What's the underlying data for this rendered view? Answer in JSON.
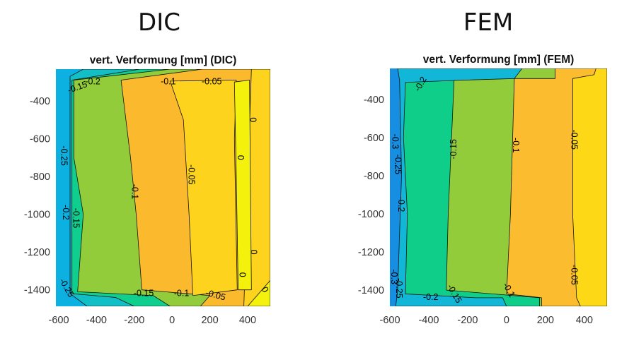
{
  "headings": {
    "left": "DIC",
    "right": "FEM"
  },
  "chart_data": [
    {
      "type": "contour",
      "title": "vert. Verformung [mm] (DIC)",
      "xlim": [
        -615,
        520
      ],
      "ylim": [
        -1487,
        -232
      ],
      "xticks": [
        -600,
        -400,
        -200,
        0,
        200,
        400
      ],
      "yticks": [
        -400,
        -600,
        -800,
        -1000,
        -1200,
        -1400
      ],
      "grid": false,
      "regions": [
        {
          "color": "#0cb1e2",
          "points": [
            [
              -615,
              -232
            ],
            [
              520,
              -232
            ],
            [
              520,
              -1487
            ],
            [
              -615,
              -1487
            ]
          ]
        },
        {
          "color": "#13bfc6",
          "points": [
            [
              -540,
              -270
            ],
            [
              -470,
              -232
            ],
            [
              520,
              -232
            ],
            [
              520,
              -1487
            ],
            [
              -450,
              -1487
            ],
            [
              -540,
              -1420
            ]
          ]
        },
        {
          "color": "#10cf8e",
          "points": [
            [
              -530,
              -290
            ],
            [
              -170,
              -232
            ],
            [
              520,
              -232
            ],
            [
              520,
              -1487
            ],
            [
              -200,
              -1487
            ],
            [
              -300,
              -1440
            ],
            [
              -530,
              -1420
            ]
          ]
        },
        {
          "color": "#93cc3a",
          "points": [
            [
              -520,
              -290
            ],
            [
              -10,
              -232
            ],
            [
              520,
              -232
            ],
            [
              520,
              -1487
            ],
            [
              -10,
              -1487
            ],
            [
              -100,
              -1430
            ],
            [
              -500,
              -1410
            ],
            [
              -470,
              -1000
            ],
            [
              -520,
              -700
            ]
          ]
        },
        {
          "color": "#fbba2e",
          "points": [
            [
              -270,
              -290
            ],
            [
              160,
              -232
            ],
            [
              520,
              -232
            ],
            [
              520,
              -1487
            ],
            [
              150,
              -1487
            ],
            [
              200,
              -1430
            ],
            [
              -160,
              -1400
            ],
            [
              -190,
              -1000
            ],
            [
              -220,
              -700
            ]
          ]
        },
        {
          "color": "#fdd31e",
          "points": [
            [
              -10,
              -295
            ],
            [
              340,
              -290
            ],
            [
              330,
              -600
            ],
            [
              345,
              -1400
            ],
            [
              110,
              -1430
            ],
            [
              90,
              -1000
            ],
            [
              60,
              -500
            ]
          ]
        },
        {
          "color": "#fdd31e",
          "points": [
            [
              420,
              -232
            ],
            [
              520,
              -232
            ],
            [
              520,
              -1487
            ],
            [
              380,
              -1487
            ]
          ]
        },
        {
          "color": "#f4f20c",
          "points": [
            [
              330,
              -300
            ],
            [
              410,
              -290
            ],
            [
              420,
              -1400
            ],
            [
              350,
              -1400
            ],
            [
              340,
              -800
            ]
          ]
        },
        {
          "color": "#f4f20c",
          "points": [
            [
              400,
              -1487
            ],
            [
              520,
              -1487
            ],
            [
              520,
              -1350
            ]
          ]
        }
      ],
      "contour_labels": [
        {
          "text": "-0.15",
          "x": -500,
          "y": -330,
          "angle": -20
        },
        {
          "text": "-0.2",
          "x": -420,
          "y": -300,
          "angle": 0
        },
        {
          "text": "-0.1",
          "x": -20,
          "y": -300,
          "angle": 0
        },
        {
          "text": "-0.05",
          "x": 210,
          "y": -300,
          "angle": 0
        },
        {
          "text": "0",
          "x": 425,
          "y": -500,
          "angle": 90
        },
        {
          "text": "0",
          "x": 360,
          "y": -700,
          "angle": 90
        },
        {
          "text": "-0.05",
          "x": 100,
          "y": -790,
          "angle": 90
        },
        {
          "text": "-0.1",
          "x": -200,
          "y": -880,
          "angle": 90
        },
        {
          "text": "-0.25",
          "x": -575,
          "y": -690,
          "angle": 90
        },
        {
          "text": "-0.2",
          "x": -565,
          "y": -990,
          "angle": 90
        },
        {
          "text": "-0.15",
          "x": -510,
          "y": -1020,
          "angle": 90
        },
        {
          "text": "0",
          "x": 430,
          "y": -1200,
          "angle": 90
        },
        {
          "text": "0",
          "x": 370,
          "y": -1320,
          "angle": 90
        },
        {
          "text": "0",
          "x": 490,
          "y": -1400,
          "angle": 60
        },
        {
          "text": "-0.25",
          "x": -560,
          "y": -1390,
          "angle": 60
        },
        {
          "text": "-0.15",
          "x": -150,
          "y": -1420,
          "angle": 0
        },
        {
          "text": "-0.1",
          "x": 50,
          "y": -1420,
          "angle": 0
        },
        {
          "text": "-0.05",
          "x": 230,
          "y": -1430,
          "angle": 15
        }
      ]
    },
    {
      "type": "contour",
      "title": "vert. Verformung [mm] (FEM)",
      "xlim": [
        -600,
        517
      ],
      "ylim": [
        -1485,
        -237
      ],
      "xticks": [
        -600,
        -400,
        -200,
        0,
        200,
        400
      ],
      "yticks": [
        -400,
        -600,
        -800,
        -1000,
        -1200,
        -1400
      ],
      "grid": false,
      "regions": [
        {
          "color": "#168fe3",
          "points": [
            [
              -600,
              -237
            ],
            [
              517,
              -237
            ],
            [
              517,
              -1485
            ],
            [
              -600,
              -1485
            ]
          ]
        },
        {
          "color": "#12b6d6",
          "points": [
            [
              -560,
              -237
            ],
            [
              517,
              -237
            ],
            [
              517,
              -1485
            ],
            [
              -570,
              -1485
            ],
            [
              -560,
              -1400
            ],
            [
              -540,
              -800
            ],
            [
              -550,
              -300
            ]
          ]
        },
        {
          "color": "#0fce8a",
          "points": [
            [
              -520,
              -310
            ],
            [
              -270,
              -300
            ],
            [
              80,
              -290
            ],
            [
              80,
              -237
            ],
            [
              517,
              -237
            ],
            [
              517,
              -1485
            ],
            [
              0,
              -1485
            ],
            [
              -20,
              -1440
            ],
            [
              -160,
              -1440
            ],
            [
              -520,
              -1420
            ],
            [
              -510,
              -1000
            ],
            [
              -530,
              -600
            ]
          ]
        },
        {
          "color": "#93cc3a",
          "points": [
            [
              -270,
              -300
            ],
            [
              40,
              -290
            ],
            [
              80,
              -237
            ],
            [
              517,
              -237
            ],
            [
              517,
              -1485
            ],
            [
              170,
              -1485
            ],
            [
              170,
              -1440
            ],
            [
              -310,
              -1400
            ],
            [
              -300,
              -1000
            ]
          ]
        },
        {
          "color": "#fbbc2f",
          "points": [
            [
              40,
              -290
            ],
            [
              250,
              -290
            ],
            [
              250,
              -237
            ],
            [
              517,
              -237
            ],
            [
              517,
              -1485
            ],
            [
              180,
              -1485
            ],
            [
              180,
              -1440
            ],
            [
              0,
              -1420
            ],
            [
              20,
              -1000
            ]
          ]
        },
        {
          "color": "#fdd816",
          "points": [
            [
              340,
              -290
            ],
            [
              450,
              -270
            ],
            [
              460,
              -237
            ],
            [
              517,
              -237
            ],
            [
              517,
              -1485
            ],
            [
              380,
              -1485
            ],
            [
              360,
              -1440
            ],
            [
              340,
              -1000
            ]
          ]
        }
      ],
      "contour_labels": [
        {
          "text": "-0.2",
          "x": -440,
          "y": -320,
          "angle": -60
        },
        {
          "text": "-0.3",
          "x": -575,
          "y": -620,
          "angle": 90
        },
        {
          "text": "-0.25",
          "x": -560,
          "y": -740,
          "angle": 90
        },
        {
          "text": "-0.2",
          "x": -545,
          "y": -950,
          "angle": 90
        },
        {
          "text": "-0.15",
          "x": -270,
          "y": -660,
          "angle": -90
        },
        {
          "text": "-0.1",
          "x": 45,
          "y": -640,
          "angle": 90
        },
        {
          "text": "-0.05",
          "x": 345,
          "y": -610,
          "angle": 90
        },
        {
          "text": "-0.05",
          "x": 345,
          "y": -1320,
          "angle": 90
        },
        {
          "text": "-0.1",
          "x": 10,
          "y": -1400,
          "angle": 60
        },
        {
          "text": "-0.15",
          "x": -270,
          "y": -1420,
          "angle": 60
        },
        {
          "text": "-0.2",
          "x": -390,
          "y": -1440,
          "angle": 0
        },
        {
          "text": "-0.3",
          "x": -580,
          "y": -1330,
          "angle": 90
        },
        {
          "text": "-0.25",
          "x": -555,
          "y": -1390,
          "angle": 90
        }
      ]
    }
  ]
}
